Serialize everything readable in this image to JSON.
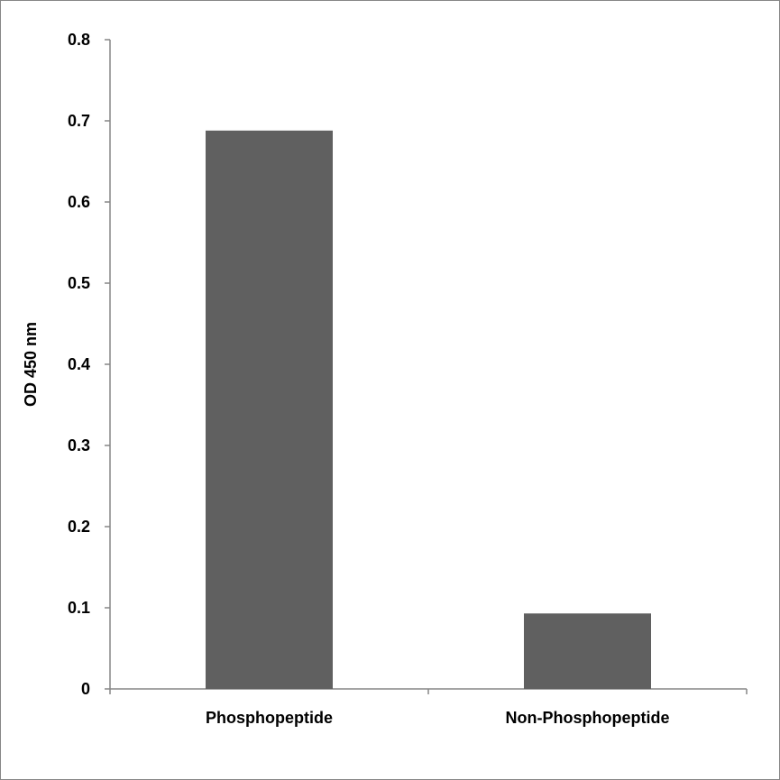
{
  "chart_data": {
    "type": "bar",
    "title": "",
    "xlabel": "",
    "ylabel": "OD 450 nm",
    "categories": [
      "Phosphopeptide",
      "Non-Phosphopeptide"
    ],
    "values": [
      0.688,
      0.093
    ],
    "ylim": [
      0,
      0.8
    ],
    "yticks": [
      "0",
      "0.1",
      "0.2",
      "0.3",
      "0.4",
      "0.5",
      "0.6",
      "0.7",
      "0.8"
    ],
    "grid": false,
    "legend": "none",
    "bar_color": "#606060",
    "axis_color": "#868686"
  }
}
